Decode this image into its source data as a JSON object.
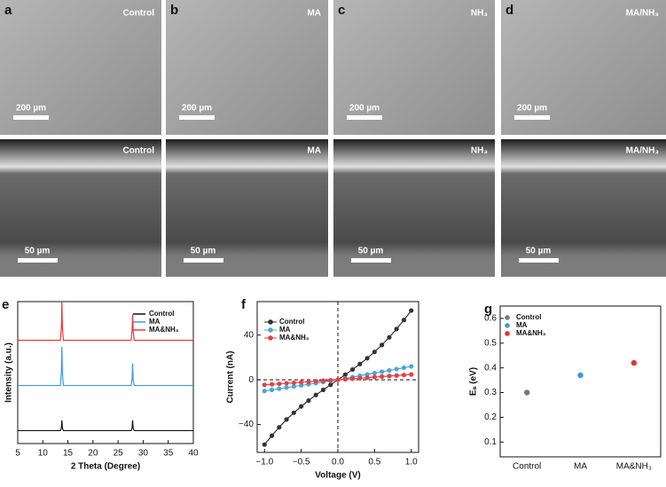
{
  "panels": [
    {
      "letter": "a",
      "label": "Control",
      "scale_top": "200 µm",
      "scale_bottom": "50 µm"
    },
    {
      "letter": "b",
      "label": "MA",
      "scale_top": "200 µm",
      "scale_bottom": "50 µm"
    },
    {
      "letter": "c",
      "label": "NH₃",
      "scale_top": "200 µm",
      "scale_bottom": "50 µm"
    },
    {
      "letter": "d",
      "label": "MA/NH₃",
      "scale_top": "200 µm",
      "scale_bottom": "50 µm"
    }
  ],
  "chart_data": [
    {
      "type": "line",
      "panel": "e",
      "xlabel": "2 Theta (Degree)",
      "ylabel": "Intensity (a.u.)",
      "xlim": [
        5,
        40
      ],
      "xticks": [
        5,
        10,
        15,
        20,
        25,
        30,
        35,
        40
      ],
      "ylim": [
        0,
        1.1
      ],
      "legend": "upper right",
      "x": [
        5,
        13.5,
        13.7,
        13.8,
        13.9,
        14.1,
        27.6,
        27.8,
        27.9,
        28.0,
        28.2,
        40
      ],
      "series": [
        {
          "name": "Control",
          "color": "#111111",
          "values": [
            0.1,
            0.1,
            0.12,
            0.18,
            0.12,
            0.1,
            0.1,
            0.12,
            0.18,
            0.12,
            0.1,
            0.1
          ]
        },
        {
          "name": "MA",
          "color": "#3a9ad9",
          "values": [
            0.45,
            0.45,
            0.55,
            0.75,
            0.55,
            0.45,
            0.45,
            0.5,
            0.62,
            0.5,
            0.45,
            0.45
          ]
        },
        {
          "name": "MA&NH₃",
          "color": "#e83a3a",
          "values": [
            0.8,
            0.8,
            0.9,
            1.1,
            0.9,
            0.8,
            0.8,
            0.88,
            1.0,
            0.88,
            0.8,
            0.8
          ]
        }
      ]
    },
    {
      "type": "dotline",
      "panel": "f",
      "xlabel": "Voltage (V)",
      "ylabel": "Current (nA)",
      "xlim": [
        -1.1,
        1.1
      ],
      "xticks": [
        {
          "value": -1,
          "label": "−1.0"
        },
        {
          "value": -0.5,
          "label": "−0.5"
        },
        {
          "value": 0,
          "label": "0.0"
        },
        {
          "value": 0.5,
          "label": "0.5"
        },
        {
          "value": 1,
          "label": "1.0"
        }
      ],
      "ylim": [
        -65,
        70
      ],
      "yticks": [
        {
          "value": -40,
          "label": "−40"
        },
        0,
        40
      ],
      "legend": "upper left",
      "x": [
        -1,
        -0.9,
        -0.8,
        -0.7,
        -0.6,
        -0.5,
        -0.4,
        -0.3,
        -0.2,
        -0.1,
        0,
        0.1,
        0.2,
        0.3,
        0.4,
        0.5,
        0.6,
        0.7,
        0.8,
        0.9,
        1
      ],
      "series": [
        {
          "name": "Control",
          "color": "#333333",
          "values": [
            -58,
            -50,
            -42.5,
            -35.5,
            -29.5,
            -23.8,
            -18.6,
            -13.6,
            -9,
            -4.5,
            0,
            4.6,
            9.2,
            14.1,
            19.3,
            25,
            31.2,
            38,
            45.5,
            53.5,
            62
          ]
        },
        {
          "name": "MA",
          "color": "#4aa6e0",
          "values": [
            -10,
            -9,
            -8,
            -7,
            -6,
            -5,
            -4,
            -3,
            -2,
            -1,
            0,
            1.2,
            2.4,
            3.6,
            4.8,
            6,
            7.2,
            8.4,
            9.6,
            10.8,
            12
          ]
        },
        {
          "name": "MA&NH₃",
          "color": "#e84040",
          "values": [
            -4.5,
            -4,
            -3.6,
            -3.1,
            -2.7,
            -2.2,
            -1.8,
            -1.3,
            -0.9,
            -0.4,
            0,
            0.5,
            1,
            1.4,
            1.9,
            2.4,
            2.9,
            3.4,
            3.8,
            4.3,
            4.8
          ]
        }
      ]
    },
    {
      "type": "category_scatter",
      "panel": "g",
      "ylabel": "Eₐ (eV)",
      "categories": [
        "Control",
        "MA",
        "MA&NH₃"
      ],
      "ylim": [
        0.04,
        0.65
      ],
      "yticks": [
        0.1,
        0.2,
        0.3,
        0.4,
        0.5,
        0.6
      ],
      "legend": "upper left",
      "series": [
        {
          "name": "Control",
          "color": "#777777",
          "values": [
            0.3,
            null,
            null
          ]
        },
        {
          "name": "MA",
          "color": "#3a9ad9",
          "values": [
            null,
            0.37,
            null
          ]
        },
        {
          "name": "MA&NH₃",
          "color": "#e83030",
          "values": [
            null,
            null,
            0.42
          ]
        }
      ]
    }
  ]
}
